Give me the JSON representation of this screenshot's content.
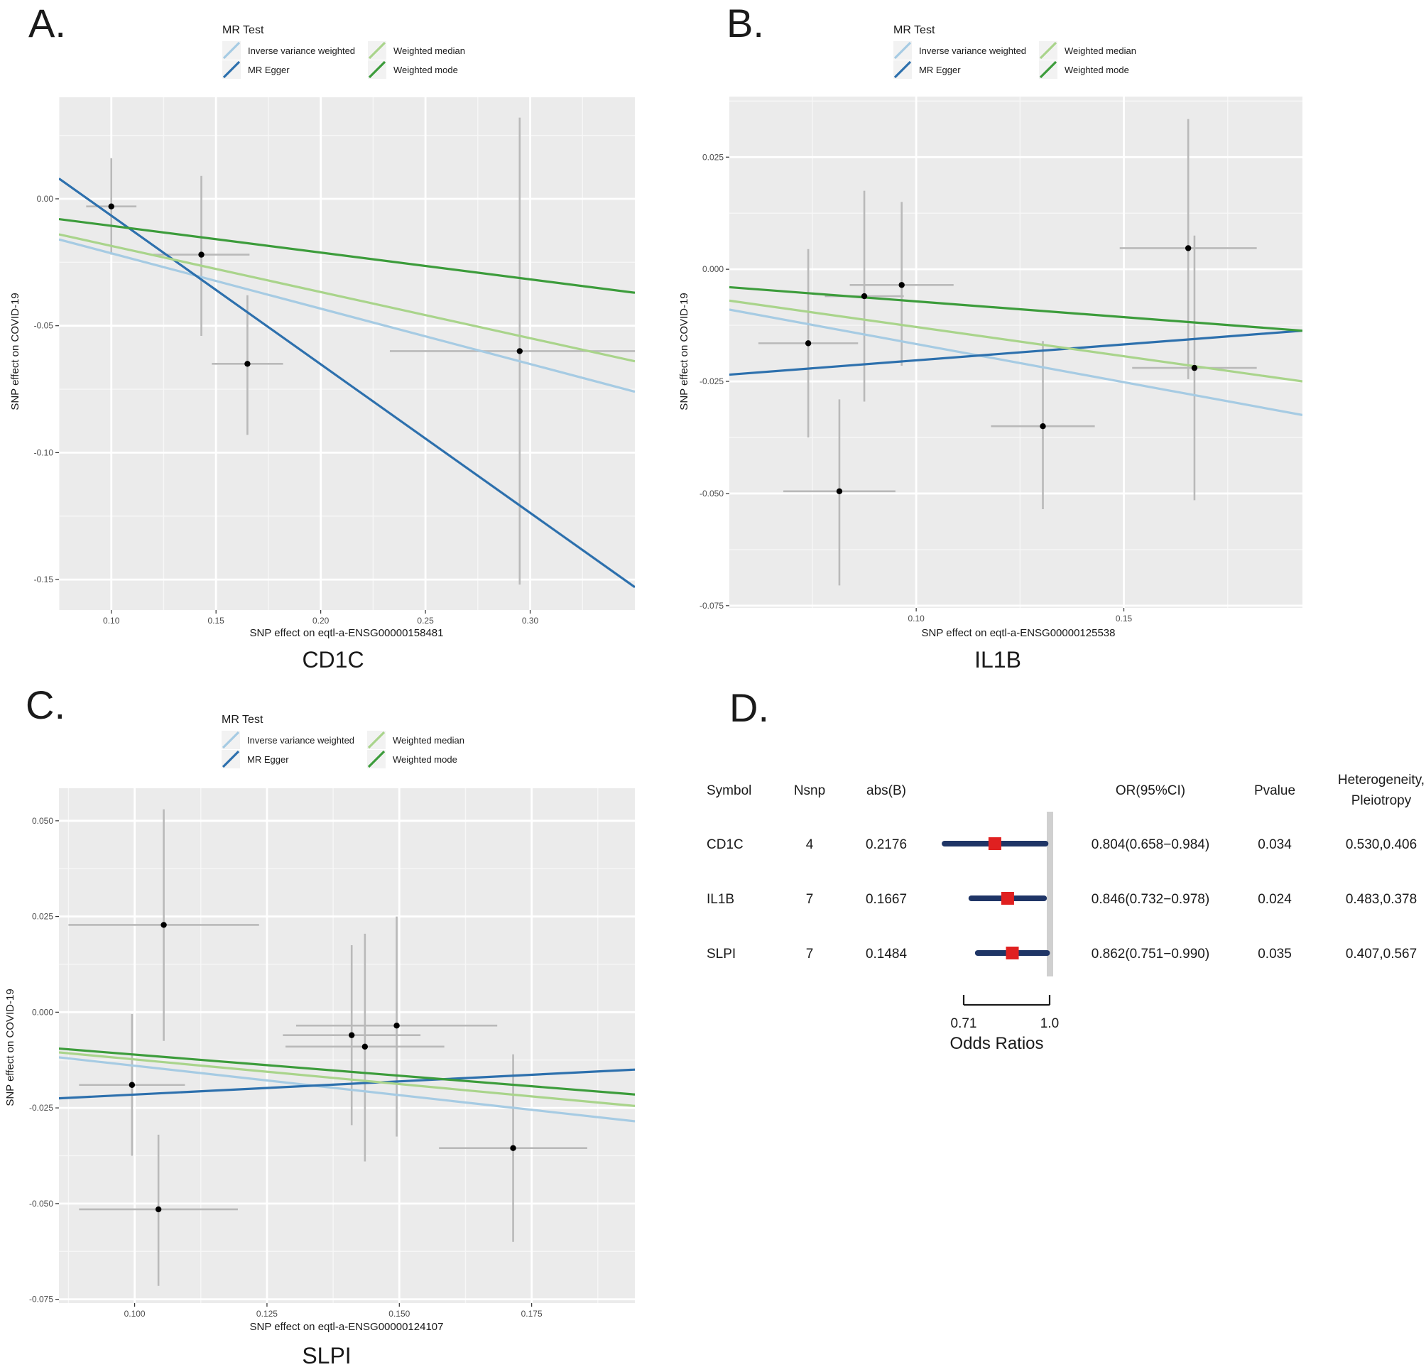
{
  "chart_data": [
    {
      "type": "scatter",
      "panel_label": "A.",
      "title": "CD1C",
      "xlabel": "SNP effect on eqtl-a-ENSG00000158481",
      "ylabel": "SNP effect on COVID-19",
      "xlim": [
        0.075,
        0.35
      ],
      "ylim": [
        -0.162,
        0.04
      ],
      "x_ticks": [
        0.1,
        0.15,
        0.2,
        0.25,
        0.3
      ],
      "x_tick_labels": [
        "0.10",
        "0.15",
        "0.20",
        "0.25",
        "0.30"
      ],
      "y_ticks": [
        0.0,
        -0.05,
        -0.1,
        -0.15
      ],
      "y_tick_labels": [
        "0.00",
        "-0.05",
        "-0.10",
        "-0.15"
      ],
      "grid": true,
      "legend": {
        "title": "MR Test",
        "placement": "top",
        "entries": [
          "Inverse variance weighted",
          "MR Egger",
          "Weighted median",
          "Weighted mode"
        ]
      },
      "points": [
        {
          "x": 0.1,
          "y": -0.003,
          "x_low": 0.088,
          "x_high": 0.112,
          "y_low": -0.022,
          "y_high": 0.016
        },
        {
          "x": 0.143,
          "y": -0.022,
          "x_low": 0.12,
          "x_high": 0.166,
          "y_low": -0.054,
          "y_high": 0.009
        },
        {
          "x": 0.165,
          "y": -0.065,
          "x_low": 0.148,
          "x_high": 0.182,
          "y_low": -0.093,
          "y_high": -0.038
        },
        {
          "x": 0.295,
          "y": -0.06,
          "x_low": 0.233,
          "x_high": 0.357,
          "y_low": -0.152,
          "y_high": 0.032
        }
      ],
      "series": [
        {
          "name": "Inverse variance weighted",
          "color": "#a6cbe3",
          "x": [
            0.075,
            0.35
          ],
          "y": [
            -0.016,
            -0.076
          ]
        },
        {
          "name": "MR Egger",
          "color": "#2d70ad",
          "x": [
            0.075,
            0.35
          ],
          "y": [
            0.008,
            -0.153
          ]
        },
        {
          "name": "Weighted median",
          "color": "#a9d48b",
          "x": [
            0.075,
            0.35
          ],
          "y": [
            -0.014,
            -0.064
          ]
        },
        {
          "name": "Weighted mode",
          "color": "#3c9c3b",
          "x": [
            0.075,
            0.35
          ],
          "y": [
            -0.008,
            -0.037
          ]
        }
      ]
    },
    {
      "type": "scatter",
      "panel_label": "B.",
      "title": "IL1B",
      "xlabel": "SNP effect on eqtl-a-ENSG00000125538",
      "ylabel": "SNP effect on COVID-19",
      "xlim": [
        0.055,
        0.193
      ],
      "ylim": [
        -0.0755,
        0.0385
      ],
      "x_ticks": [
        0.1,
        0.15
      ],
      "x_tick_labels": [
        "0.10",
        "0.15"
      ],
      "y_ticks": [
        0.025,
        0.0,
        -0.025,
        -0.05,
        -0.075
      ],
      "y_tick_labels": [
        "0.025",
        "0.000",
        "-0.025",
        "-0.050",
        "-0.075"
      ],
      "grid": true,
      "legend": {
        "title": "MR Test",
        "placement": "top",
        "entries": [
          "Inverse variance weighted",
          "MR Egger",
          "Weighted median",
          "Weighted mode"
        ]
      },
      "points": [
        {
          "x": 0.074,
          "y": -0.0165,
          "x_low": 0.062,
          "x_high": 0.086,
          "y_low": -0.0375,
          "y_high": 0.0045
        },
        {
          "x": 0.0815,
          "y": -0.0495,
          "x_low": 0.068,
          "x_high": 0.095,
          "y_low": -0.0705,
          "y_high": -0.029
        },
        {
          "x": 0.0875,
          "y": -0.006,
          "x_low": 0.078,
          "x_high": 0.097,
          "y_low": -0.0295,
          "y_high": 0.0175
        },
        {
          "x": 0.0965,
          "y": -0.0035,
          "x_low": 0.084,
          "x_high": 0.109,
          "y_low": -0.0215,
          "y_high": 0.015
        },
        {
          "x": 0.1305,
          "y": -0.035,
          "x_low": 0.118,
          "x_high": 0.143,
          "y_low": -0.0535,
          "y_high": -0.016
        },
        {
          "x": 0.1655,
          "y": 0.0047,
          "x_low": 0.149,
          "x_high": 0.182,
          "y_low": -0.0245,
          "y_high": 0.0335
        },
        {
          "x": 0.167,
          "y": -0.022,
          "x_low": 0.152,
          "x_high": 0.182,
          "y_low": -0.0515,
          "y_high": 0.0075
        }
      ],
      "series": [
        {
          "name": "Inverse variance weighted",
          "color": "#a6cbe3",
          "x": [
            0.055,
            0.193
          ],
          "y": [
            -0.009,
            -0.0325
          ]
        },
        {
          "name": "MR Egger",
          "color": "#2d70ad",
          "x": [
            0.055,
            0.193
          ],
          "y": [
            -0.0235,
            -0.0137
          ]
        },
        {
          "name": "Weighted median",
          "color": "#a9d48b",
          "x": [
            0.055,
            0.193
          ],
          "y": [
            -0.007,
            -0.025
          ]
        },
        {
          "name": "Weighted mode",
          "color": "#3c9c3b",
          "x": [
            0.055,
            0.193
          ],
          "y": [
            -0.004,
            -0.0137
          ]
        }
      ]
    },
    {
      "type": "scatter",
      "panel_label": "C.",
      "title": "SLPI",
      "xlabel": "SNP effect on eqtl-a-ENSG00000124107",
      "ylabel": "SNP effect on COVID-19",
      "xlim": [
        0.0857,
        0.1945
      ],
      "ylim": [
        -0.076,
        0.0585
      ],
      "x_ticks": [
        0.1,
        0.125,
        0.15,
        0.175
      ],
      "x_tick_labels": [
        "0.100",
        "0.125",
        "0.150",
        "0.175"
      ],
      "y_ticks": [
        0.05,
        0.025,
        0.0,
        -0.025,
        -0.05,
        -0.075
      ],
      "y_tick_labels": [
        "0.050",
        "0.025",
        "0.000",
        "-0.025",
        "-0.050",
        "-0.075"
      ],
      "grid": true,
      "legend": {
        "title": "MR Test",
        "placement": "top",
        "entries": [
          "Inverse variance weighted",
          "MR Egger",
          "Weighted median",
          "Weighted mode"
        ]
      },
      "points": [
        {
          "x": 0.0995,
          "y": -0.019,
          "x_low": 0.0895,
          "x_high": 0.1095,
          "y_low": -0.0375,
          "y_high": -0.0005
        },
        {
          "x": 0.1045,
          "y": -0.0515,
          "x_low": 0.0895,
          "x_high": 0.1195,
          "y_low": -0.0715,
          "y_high": -0.032
        },
        {
          "x": 0.1055,
          "y": 0.0228,
          "x_low": 0.0875,
          "x_high": 0.1235,
          "y_low": -0.0075,
          "y_high": 0.053
        },
        {
          "x": 0.141,
          "y": -0.006,
          "x_low": 0.128,
          "x_high": 0.154,
          "y_low": -0.0295,
          "y_high": 0.0175
        },
        {
          "x": 0.1435,
          "y": -0.009,
          "x_low": 0.1285,
          "x_high": 0.1585,
          "y_low": -0.039,
          "y_high": 0.0205
        },
        {
          "x": 0.1495,
          "y": -0.0035,
          "x_low": 0.1305,
          "x_high": 0.1685,
          "y_low": -0.0325,
          "y_high": 0.025
        },
        {
          "x": 0.1715,
          "y": -0.0355,
          "x_low": 0.1575,
          "x_high": 0.1855,
          "y_low": -0.06,
          "y_high": -0.011
        }
      ],
      "series": [
        {
          "name": "Inverse variance weighted",
          "color": "#a6cbe3",
          "x": [
            0.0857,
            0.1945
          ],
          "y": [
            -0.0118,
            -0.0285
          ]
        },
        {
          "name": "MR Egger",
          "color": "#2d70ad",
          "x": [
            0.0857,
            0.1945
          ],
          "y": [
            -0.0225,
            -0.015
          ]
        },
        {
          "name": "Weighted median",
          "color": "#a9d48b",
          "x": [
            0.0857,
            0.1945
          ],
          "y": [
            -0.0105,
            -0.0245
          ]
        },
        {
          "name": "Weighted mode",
          "color": "#3c9c3b",
          "x": [
            0.0857,
            0.1945
          ],
          "y": [
            -0.0095,
            -0.0215
          ]
        }
      ]
    },
    {
      "type": "table",
      "panel_label": "D.",
      "columns": [
        "Symbol",
        "Nsnp",
        "abs(B)",
        "OR(95%CI)",
        "Pvalue",
        "Heterogeneity,\nPleiotropy"
      ],
      "rows": [
        {
          "symbol": "CD1C",
          "nsnp": "4",
          "absb": "0.2176",
          "or_ci": "0.804(0.658−0.984)",
          "pvalue": "0.034",
          "het_pleio": "0.530,0.406",
          "or": 0.804,
          "ci_low": 0.658,
          "ci_high": 0.984
        },
        {
          "symbol": "IL1B",
          "nsnp": "7",
          "absb": "0.1667",
          "or_ci": "0.846(0.732−0.978)",
          "pvalue": "0.024",
          "het_pleio": "0.483,0.378",
          "or": 0.846,
          "ci_low": 0.732,
          "ci_high": 0.978
        },
        {
          "symbol": "SLPI",
          "nsnp": "7",
          "absb": "0.1484",
          "or_ci": "0.862(0.751−0.990)",
          "pvalue": "0.035",
          "het_pleio": "0.407,0.567",
          "or": 0.862,
          "ci_low": 0.751,
          "ci_high": 0.99
        }
      ],
      "forest_axis": {
        "ticks": [
          0.71,
          1.0
        ],
        "tick_labels": [
          "0.71",
          "1.0"
        ],
        "range": [
          0.71,
          1.0
        ],
        "label": "Odds Ratios"
      },
      "colors": {
        "ci_bar": "#1f3566",
        "estimate": "#e02020",
        "reference_line": "#d0d0d0"
      }
    }
  ]
}
